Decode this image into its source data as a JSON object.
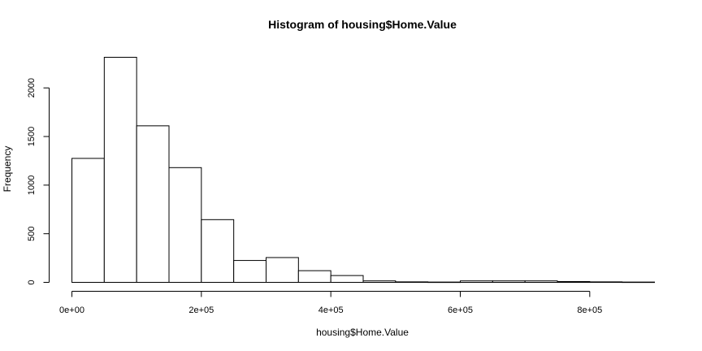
{
  "chart_data": {
    "type": "bar",
    "title": "Histogram of housing$Home.Value",
    "xlabel": "housing$Home.Value",
    "ylabel": "Frequency",
    "bin_width": 50000,
    "bins": [
      {
        "start": 0,
        "end": 50000,
        "count": 1275
      },
      {
        "start": 50000,
        "end": 100000,
        "count": 2315
      },
      {
        "start": 100000,
        "end": 150000,
        "count": 1610
      },
      {
        "start": 150000,
        "end": 200000,
        "count": 1180
      },
      {
        "start": 200000,
        "end": 250000,
        "count": 645
      },
      {
        "start": 250000,
        "end": 300000,
        "count": 225
      },
      {
        "start": 300000,
        "end": 350000,
        "count": 255
      },
      {
        "start": 350000,
        "end": 400000,
        "count": 120
      },
      {
        "start": 400000,
        "end": 450000,
        "count": 70
      },
      {
        "start": 450000,
        "end": 500000,
        "count": 15
      },
      {
        "start": 500000,
        "end": 550000,
        "count": 5
      },
      {
        "start": 550000,
        "end": 600000,
        "count": 3
      },
      {
        "start": 600000,
        "end": 650000,
        "count": 15
      },
      {
        "start": 650000,
        "end": 700000,
        "count": 15
      },
      {
        "start": 700000,
        "end": 750000,
        "count": 15
      },
      {
        "start": 750000,
        "end": 800000,
        "count": 8
      },
      {
        "start": 800000,
        "end": 850000,
        "count": 5
      },
      {
        "start": 850000,
        "end": 900000,
        "count": 3
      }
    ],
    "xlim": [
      0,
      900000
    ],
    "ylim": [
      0,
      2315
    ],
    "x_ticks": [
      {
        "value": 0,
        "label": "0e+00"
      },
      {
        "value": 200000,
        "label": "2e+05"
      },
      {
        "value": 400000,
        "label": "4e+05"
      },
      {
        "value": 600000,
        "label": "6e+05"
      },
      {
        "value": 800000,
        "label": "8e+05"
      }
    ],
    "y_ticks": [
      {
        "value": 0,
        "label": "0"
      },
      {
        "value": 500,
        "label": "500"
      },
      {
        "value": 1000,
        "label": "1000"
      },
      {
        "value": 1500,
        "label": "1500"
      },
      {
        "value": 2000,
        "label": "2000"
      }
    ],
    "grid": false,
    "legend": "none",
    "colors": {
      "bar_fill": "#ffffff",
      "bar_stroke": "#000000"
    }
  }
}
